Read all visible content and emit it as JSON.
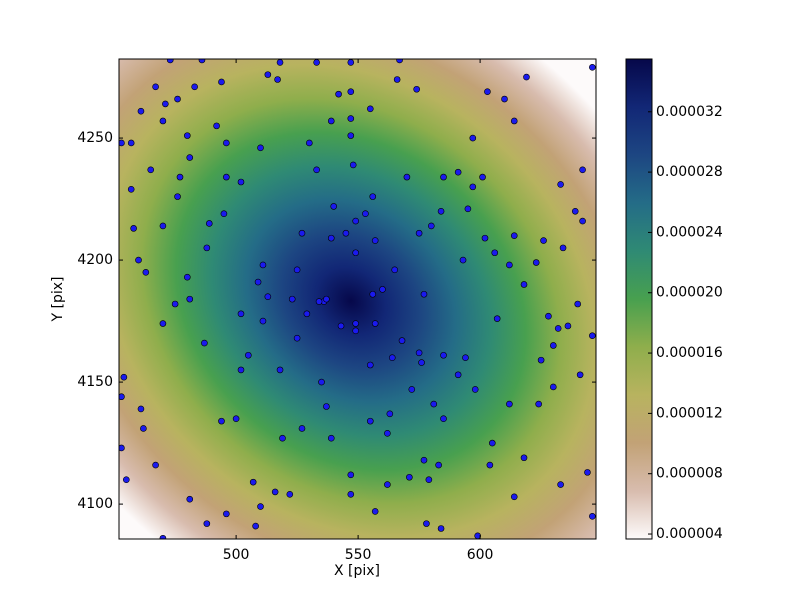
{
  "chart_data": {
    "type": "scatter",
    "x_label": "X [pix]",
    "y_label": "Y [pix]",
    "xlim": [
      452,
      647.5
    ],
    "ylim": [
      4085.7,
      4282.4
    ],
    "xticks": [
      500,
      550,
      600
    ],
    "yticks": [
      4100,
      4150,
      4200,
      4250
    ],
    "color": "#1a1aee",
    "colormap": [
      "#fdfafa",
      "#d8bcae",
      "#c2a276",
      "#b8b35f",
      "#8fae4c",
      "#48a04f",
      "#2f8a74",
      "#246c87",
      "#1d4682",
      "#122776",
      "#06084a"
    ],
    "colorbar": {
      "lim": [
        3.67e-06,
        3.55e-05
      ],
      "ticks": [
        4e-06,
        8e-06,
        1.2e-05,
        1.6e-05,
        {
          "value": 2e-05,
          "label": "0.000020"
        },
        2.4e-05,
        2.8e-05,
        3.2e-05
      ]
    },
    "x": [
      473,
      486,
      518,
      533,
      547,
      567,
      467,
      483,
      494,
      513,
      517,
      542,
      547,
      566,
      574,
      603,
      610,
      619,
      646,
      461,
      471,
      476,
      470,
      547,
      555,
      539,
      614,
      492,
      480,
      453,
      457,
      496,
      510,
      530,
      547,
      597,
      481,
      548,
      465,
      477,
      496,
      502,
      533,
      570,
      585,
      591,
      601,
      597,
      642,
      633,
      457,
      476,
      556,
      595,
      639,
      642,
      540,
      495,
      584,
      470,
      489,
      549,
      553,
      458,
      527,
      580,
      575,
      539,
      545,
      557,
      602,
      614,
      626,
      488,
      634,
      549,
      606,
      460,
      593,
      511,
      525,
      565,
      612,
      463,
      623,
      480,
      509,
      618,
      560,
      556,
      513,
      523,
      536,
      537,
      577,
      481,
      475,
      640,
      534,
      502,
      529,
      628,
      511,
      607,
      470,
      543,
      549,
      557,
      632,
      636,
      646,
      525,
      549,
      568,
      487,
      630,
      575,
      505,
      564,
      585,
      594,
      576,
      555,
      625,
      502,
      518,
      591,
      641,
      454,
      535,
      630,
      572,
      598,
      453,
      581,
      624,
      612,
      537,
      461,
      563,
      494,
      500,
      555,
      585,
      462,
      527,
      562,
      519,
      539,
      605,
      453,
      618,
      577,
      583,
      467,
      604,
      644,
      547,
      455,
      507,
      571,
      579,
      562,
      633,
      516,
      547,
      522,
      481,
      614,
      510,
      557,
      496,
      646,
      488,
      508,
      578,
      584,
      470,
      599
    ],
    "y": [
      4282,
      4282,
      4281,
      4281,
      4281,
      4282,
      4271,
      4271,
      4273,
      4276,
      4274,
      4268,
      4269,
      4274,
      4270,
      4269,
      4266,
      4275,
      4279,
      4261,
      4264,
      4266,
      4257,
      4258,
      4262,
      4257,
      4257,
      4255,
      4251,
      4248,
      4248,
      4248,
      4246,
      4248,
      4251,
      4250,
      4242,
      4239,
      4237,
      4234,
      4234,
      4232,
      4237,
      4234,
      4234,
      4236,
      4234,
      4230,
      4237,
      4231,
      4229,
      4226,
      4226,
      4221,
      4220,
      4216,
      4222,
      4219,
      4220,
      4214,
      4215,
      4216,
      4219,
      4213,
      4211,
      4214,
      4211,
      4209,
      4211,
      4208,
      4209,
      4210,
      4208,
      4205,
      4205,
      4203,
      4203,
      4200,
      4200,
      4198,
      4196,
      4196,
      4198,
      4195,
      4199,
      4193,
      4191,
      4190,
      4188,
      4186,
      4185,
      4184,
      4183,
      4184,
      4186,
      4184,
      4182,
      4182,
      4183,
      4178,
      4178,
      4177,
      4175,
      4176,
      4174,
      4173,
      4174,
      4174,
      4172,
      4173,
      4169,
      4168,
      4171,
      4167,
      4166,
      4165,
      4162,
      4161,
      4160,
      4161,
      4160,
      4158,
      4157,
      4159,
      4155,
      4155,
      4153,
      4153,
      4152,
      4150,
      4148,
      4147,
      4147,
      4144,
      4141,
      4141,
      4141,
      4140,
      4139,
      4137,
      4134,
      4135,
      4134,
      4135,
      4131,
      4131,
      4129,
      4127,
      4127,
      4125,
      4123,
      4119,
      4118,
      4116,
      4116,
      4116,
      4113,
      4112,
      4110,
      4109,
      4111,
      4110,
      4108,
      4108,
      4105,
      4104,
      4104,
      4102,
      4103,
      4099,
      4097,
      4096,
      4095,
      4092,
      4091,
      4092,
      4090,
      4086,
      4087
    ]
  }
}
